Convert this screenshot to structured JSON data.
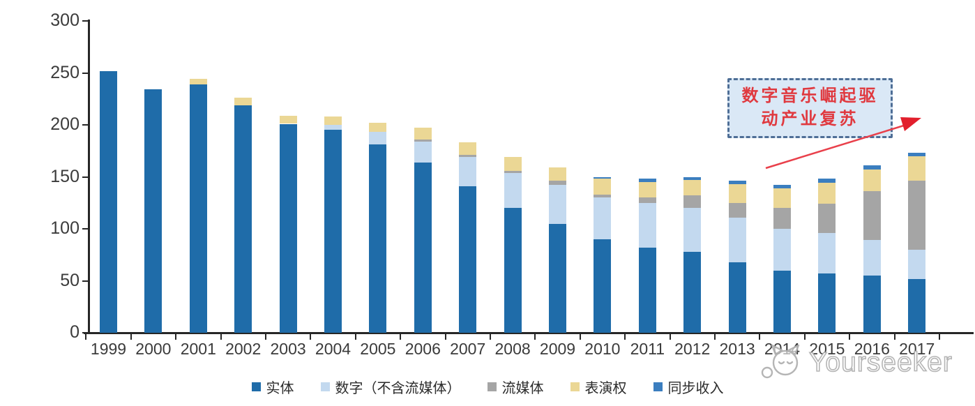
{
  "chart_data": {
    "type": "bar",
    "stacked": true,
    "title": "",
    "categories": [
      "1999",
      "2000",
      "2001",
      "2002",
      "2003",
      "2004",
      "2005",
      "2006",
      "2007",
      "2008",
      "2009",
      "2010",
      "2011",
      "2012",
      "2013",
      "2014",
      "2015",
      "2016",
      "2017"
    ],
    "series": [
      {
        "name": "实体",
        "key": "physical",
        "color": "#1f6ca9",
        "values": [
          252,
          234,
          239,
          219,
          201,
          195,
          181,
          164,
          141,
          120,
          105,
          90,
          82,
          78,
          68,
          60,
          57,
          55,
          52
        ]
      },
      {
        "name": "数字（不含流媒体）",
        "key": "digital",
        "color": "#c3d9ef",
        "values": [
          0,
          0,
          0,
          0,
          0,
          5,
          12,
          20,
          28,
          34,
          37,
          40,
          43,
          42,
          43,
          40,
          39,
          34,
          28
        ]
      },
      {
        "name": "流媒体",
        "key": "streaming",
        "color": "#a5a5a5",
        "values": [
          0,
          0,
          0,
          0,
          0,
          0,
          0,
          2,
          2,
          2,
          4,
          3,
          5,
          12,
          14,
          20,
          28,
          47,
          66
        ]
      },
      {
        "name": "表演权",
        "key": "performance",
        "color": "#ebd795",
        "values": [
          0,
          0,
          5,
          7,
          8,
          8,
          9,
          11,
          12,
          13,
          13,
          15,
          15,
          15,
          18,
          19,
          20,
          21,
          24
        ]
      },
      {
        "name": "同步收入",
        "key": "sync",
        "color": "#3b7ebf",
        "values": [
          0,
          0,
          0,
          0,
          0,
          0,
          0,
          0,
          0,
          0,
          0,
          2,
          3,
          3,
          3,
          3,
          4,
          4,
          3
        ]
      }
    ],
    "totals": [
      252,
      234,
      244,
      226,
      209,
      208,
      202,
      197,
      183,
      169,
      159,
      150,
      148,
      150,
      146,
      142,
      148,
      161,
      173
    ],
    "ylim": [
      0,
      300
    ],
    "yticks": [
      0,
      50,
      100,
      150,
      200,
      250,
      300
    ],
    "grid": false,
    "legend_position": "bottom",
    "axis_color": "#262626"
  },
  "annotation": {
    "line1": "数字音乐崛起驱",
    "line2": "动产业复苏",
    "text_color": "#e0393f",
    "box_fill": "#dae8f6",
    "box_border": "#4e6e96",
    "arrow_color": "#e9404b"
  },
  "watermark": {
    "text": "Yourseeker",
    "logo": "cat-face-icon",
    "color": "#b2b2b2"
  }
}
